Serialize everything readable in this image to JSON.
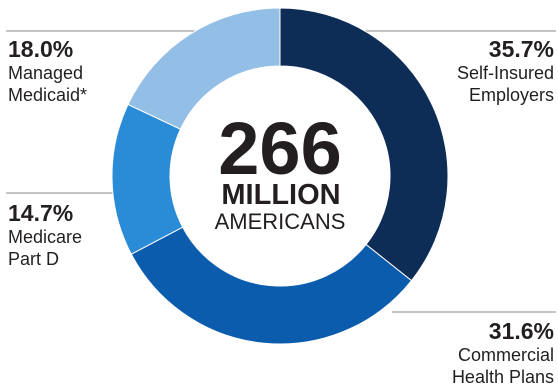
{
  "chart_data": {
    "type": "pie",
    "title": "",
    "center": {
      "number": "266",
      "line1": "MILLION",
      "line2": "AMERICANS"
    },
    "slices": [
      {
        "label": "Self-Insured Employers",
        "value": 35.7,
        "pct_text": "35.7%",
        "desc_lines": [
          "Self-Insured",
          "Employers"
        ],
        "color": "#0d2d57"
      },
      {
        "label": "Commercial Health Plans",
        "value": 31.6,
        "pct_text": "31.6%",
        "desc_lines": [
          "Commercial",
          "Health Plans"
        ],
        "color": "#0b5cad"
      },
      {
        "label": "Medicare Part D",
        "value": 14.7,
        "pct_text": "14.7%",
        "desc_lines": [
          "Medicare",
          "Part D"
        ],
        "color": "#2a8bd6"
      },
      {
        "label": "Managed Medicaid*",
        "value": 18.0,
        "pct_text": "18.0%",
        "desc_lines": [
          "Managed",
          "Medicaid*"
        ],
        "color": "#93bfe6"
      }
    ]
  }
}
